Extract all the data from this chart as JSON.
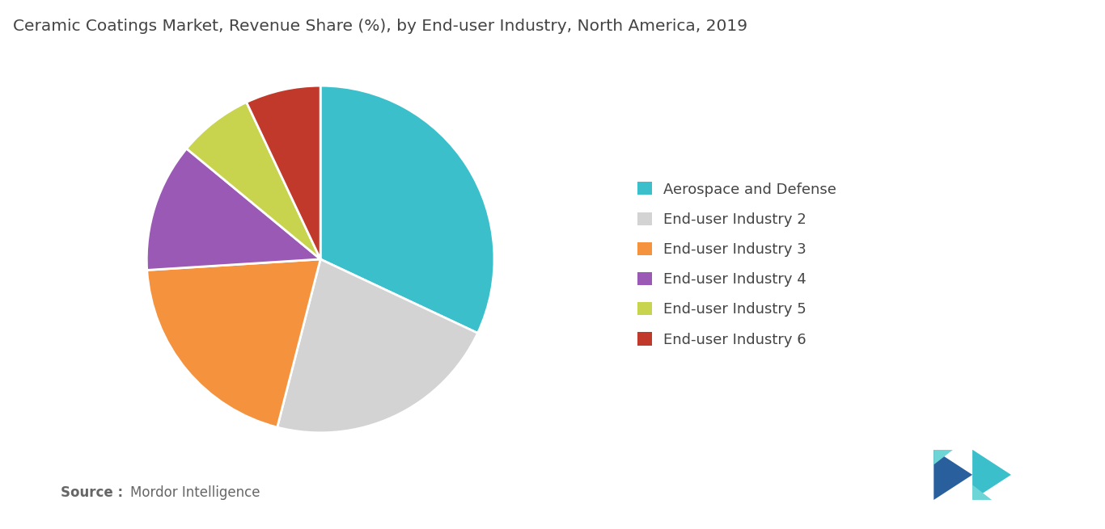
{
  "title": "Ceramic Coatings Market, Revenue Share (%), by End-user Industry, North America, 2019",
  "title_fontsize": 14.5,
  "title_color": "#444444",
  "labels": [
    "Aerospace and Defense",
    "End-user Industry 2",
    "End-user Industry 3",
    "End-user Industry 4",
    "End-user Industry 5",
    "End-user Industry 6"
  ],
  "sizes": [
    32,
    22,
    20,
    12,
    7,
    7
  ],
  "colors": [
    "#3BBFCA",
    "#D3D3D3",
    "#F5923E",
    "#9B59B6",
    "#C8D44E",
    "#C0392B"
  ],
  "start_angle": 90,
  "source_bold": "Source :",
  "source_normal": "Mordor Intelligence",
  "background_color": "#FFFFFF",
  "legend_fontsize": 13,
  "wedge_edge_color": "#FFFFFF",
  "wedge_linewidth": 2.0,
  "logo_dark_blue": "#2A5F9E",
  "logo_teal": "#3BBFCA",
  "logo_light_teal": "#6DD5D5"
}
